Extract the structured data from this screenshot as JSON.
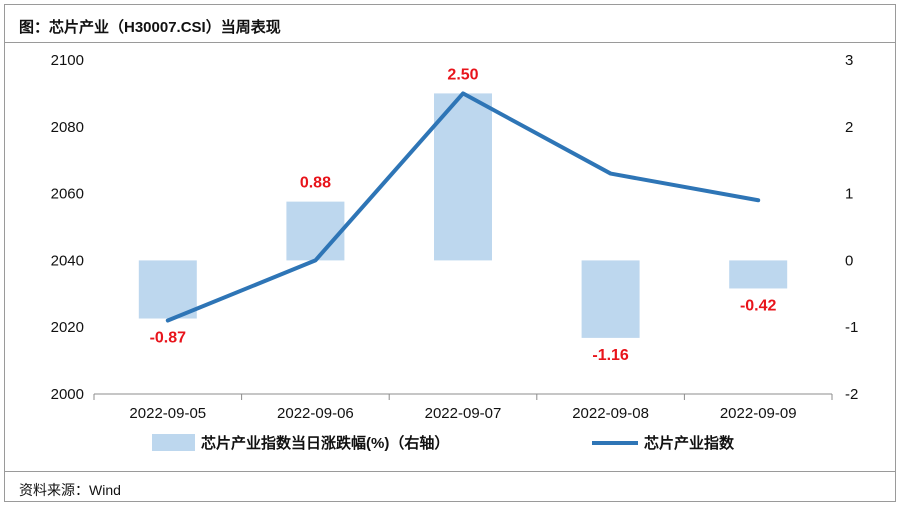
{
  "header": {
    "title": "图：芯片产业（H30007.CSI）当周表现"
  },
  "footer": {
    "source": "资料来源：Wind"
  },
  "chart_data": {
    "type": "bar",
    "categories": [
      "2022-09-05",
      "2022-09-06",
      "2022-09-07",
      "2022-09-08",
      "2022-09-09"
    ],
    "series": [
      {
        "name": "芯片产业指数当日涨跌幅(%)（右轴）",
        "type": "bar",
        "axis": "right",
        "color": "#bdd7ee",
        "values": [
          -0.87,
          0.88,
          2.5,
          -1.16,
          -0.42
        ],
        "labels": [
          "-0.87",
          "0.88",
          "2.50",
          "-1.16",
          "-0.42"
        ]
      },
      {
        "name": "芯片产业指数",
        "type": "line",
        "axis": "left",
        "color": "#2e75b6",
        "values": [
          2022,
          2040,
          2090,
          2066,
          2058
        ]
      }
    ],
    "y_left": {
      "min": 2000,
      "max": 2100,
      "ticks": [
        "2000",
        "2020",
        "2040",
        "2060",
        "2080",
        "2100"
      ]
    },
    "y_right": {
      "min": -2,
      "max": 3,
      "ticks": [
        "-2",
        "-1",
        "0",
        "1",
        "2",
        "3"
      ]
    },
    "label_color": "#e8141b",
    "grid": false,
    "legend_position": "bottom"
  }
}
